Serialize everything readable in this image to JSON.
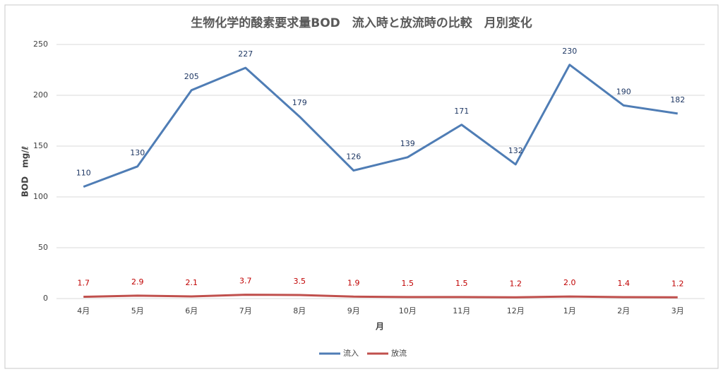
{
  "chart_data": {
    "type": "line",
    "title": "生物化学的酸素要求量BOD　流入時と放流時の比較　月別変化",
    "x_label": "月",
    "y_label": "BOD　mg/ℓ",
    "categories": [
      "4月",
      "5月",
      "6月",
      "7月",
      "8月",
      "9月",
      "10月",
      "11月",
      "12月",
      "1月",
      "2月",
      "3月"
    ],
    "series": [
      {
        "name": "流入",
        "color": "#4f7db5",
        "label_color": "#1f3864",
        "values": [
          110,
          130,
          205,
          227,
          179,
          126,
          139,
          171,
          132,
          230,
          190,
          182
        ]
      },
      {
        "name": "放流",
        "color": "#c0504d",
        "label_color": "#c00000",
        "values": [
          1.7,
          2.9,
          2.1,
          3.7,
          3.5,
          1.9,
          1.5,
          1.5,
          1.2,
          2.0,
          1.4,
          1.2
        ],
        "value_labels": [
          "1.7",
          "2.9",
          "2.1",
          "3.7",
          "3.5",
          "1.9",
          "1.5",
          "1.5",
          "1.2",
          "2.0",
          "1.4",
          "1.2"
        ]
      }
    ],
    "ylim": [
      0,
      250
    ],
    "yticks": [
      0,
      50,
      100,
      150,
      200,
      250
    ],
    "grid": true,
    "legend": "bottom"
  }
}
